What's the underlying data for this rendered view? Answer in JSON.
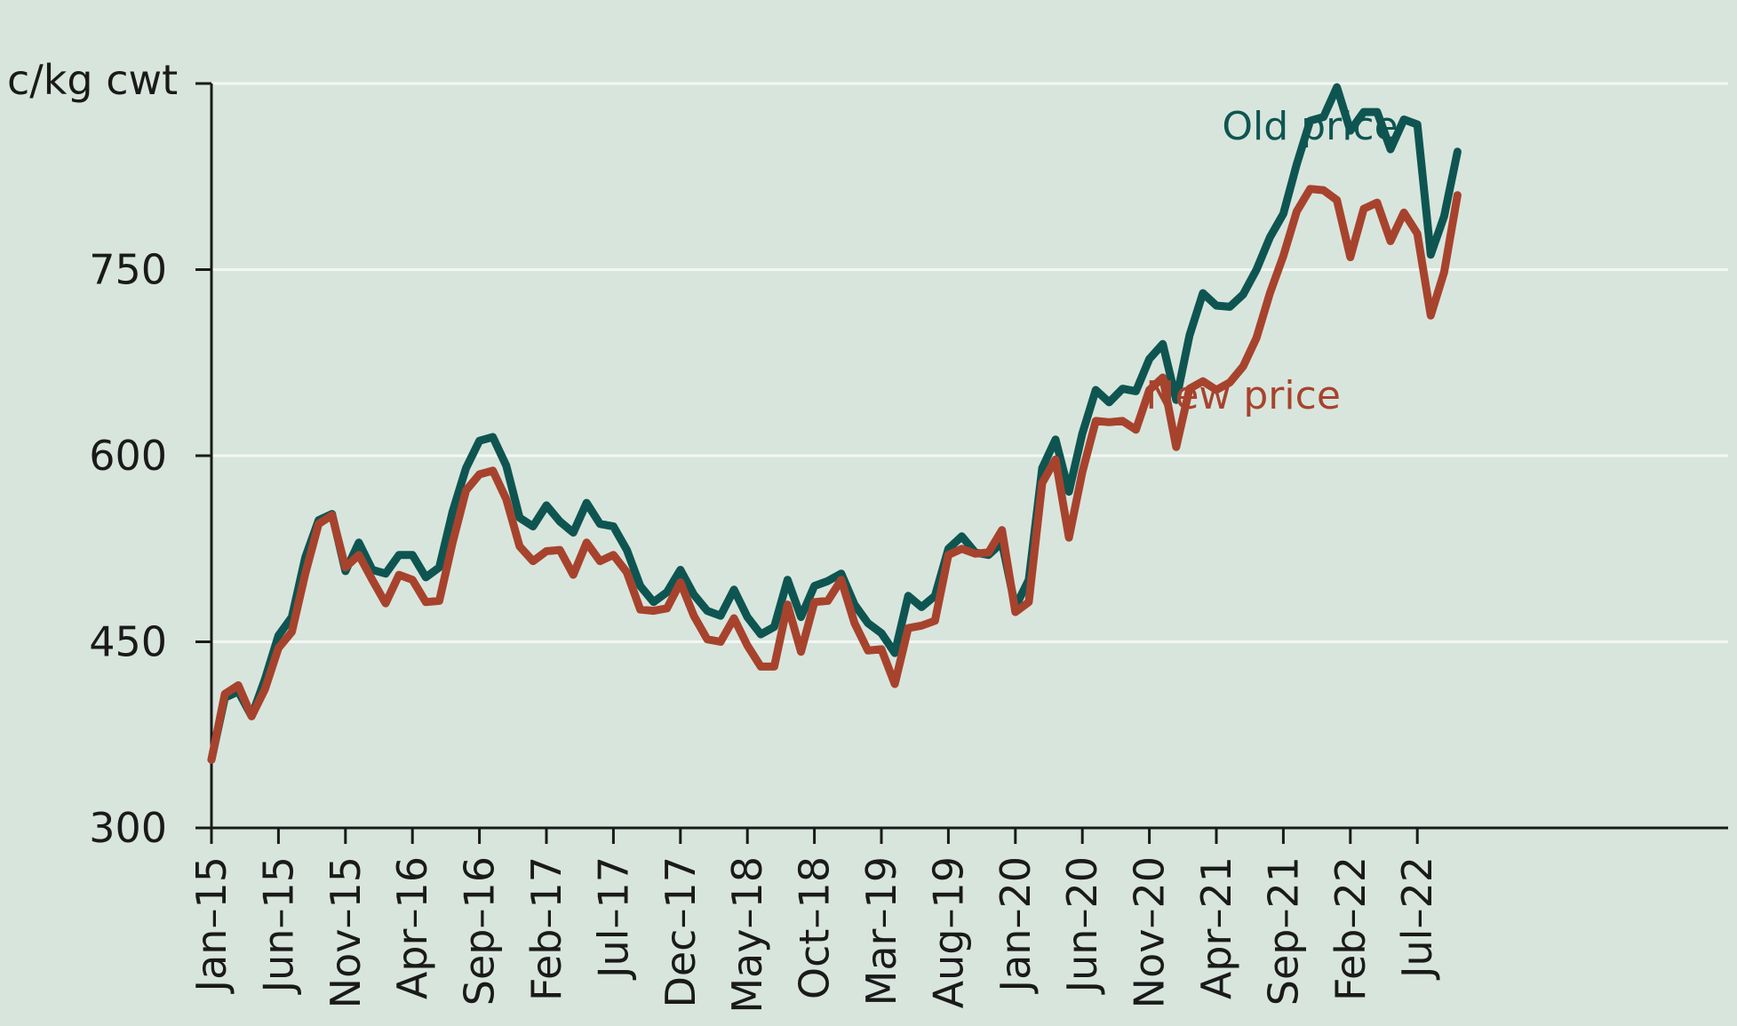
{
  "chart_data": {
    "type": "line",
    "title": "",
    "xlabel": "",
    "ylabel": "c/kg cwt",
    "ylim": [
      300,
      900
    ],
    "yticks": [
      300,
      450,
      600,
      750
    ],
    "grid": true,
    "x": [
      "Jan-15",
      "Feb-15",
      "Mar-15",
      "Apr-15",
      "May-15",
      "Jun-15",
      "Jul-15",
      "Aug-15",
      "Sep-15",
      "Oct-15",
      "Nov-15",
      "Dec-15",
      "Jan-16",
      "Feb-16",
      "Mar-16",
      "Apr-16",
      "May-16",
      "Jun-16",
      "Jul-16",
      "Aug-16",
      "Sep-16",
      "Oct-16",
      "Nov-16",
      "Dec-16",
      "Jan-17",
      "Feb-17",
      "Mar-17",
      "Apr-17",
      "May-17",
      "Jun-17",
      "Jul-17",
      "Aug-17",
      "Sep-17",
      "Oct-17",
      "Nov-17",
      "Dec-17",
      "Jan-18",
      "Feb-18",
      "Mar-18",
      "Apr-18",
      "May-18",
      "Jun-18",
      "Jul-18",
      "Aug-18",
      "Sep-18",
      "Oct-18",
      "Nov-18",
      "Dec-18",
      "Jan-19",
      "Feb-19",
      "Mar-19",
      "Apr-19",
      "May-19",
      "Jun-19",
      "Jul-19",
      "Aug-19",
      "Sep-19",
      "Oct-19",
      "Nov-19",
      "Dec-19",
      "Jan-20",
      "Feb-20",
      "Mar-20",
      "Apr-20",
      "May-20",
      "Jun-20",
      "Jul-20",
      "Aug-20",
      "Sep-20",
      "Oct-20",
      "Nov-20",
      "Dec-20",
      "Jan-21",
      "Feb-21",
      "Mar-21",
      "Apr-21",
      "May-21",
      "Jun-21",
      "Jul-21",
      "Aug-21",
      "Sep-21",
      "Oct-21",
      "Nov-21",
      "Dec-21",
      "Jan-22",
      "Feb-22",
      "Mar-22",
      "Apr-22",
      "May-22",
      "Jun-22",
      "Jul-22",
      "Aug-22",
      "Sep-22",
      "Oct-22"
    ],
    "xtick_labels": [
      "Jan–15",
      "Jun–15",
      "Nov–15",
      "Apr–16",
      "Sep–16",
      "Feb–17",
      "Jul–17",
      "Dec–17",
      "May–18",
      "Oct–18",
      "Mar–19",
      "Aug–19",
      "Jan–20",
      "Jun–20",
      "Nov–20",
      "Apr–21",
      "Sep–21",
      "Feb–22",
      "Jul–22"
    ],
    "xtick_every": 5,
    "series": [
      {
        "name": "Old price",
        "color": "#0e5551",
        "values": [
          355,
          405,
          410,
          390,
          420,
          455,
          470,
          518,
          548,
          553,
          507,
          530,
          508,
          505,
          520,
          520,
          502,
          510,
          555,
          590,
          612,
          615,
          592,
          550,
          543,
          560,
          547,
          538,
          562,
          545,
          543,
          524,
          495,
          482,
          490,
          508,
          488,
          475,
          471,
          492,
          470,
          456,
          462,
          500,
          470,
          495,
          499,
          505,
          480,
          465,
          457,
          441,
          487,
          478,
          487,
          525,
          535,
          522,
          520,
          530,
          478,
          500,
          590,
          613,
          571,
          618,
          653,
          643,
          654,
          652,
          678,
          690,
          645,
          697,
          731,
          721,
          720,
          730,
          750,
          776,
          795,
          835,
          870,
          873,
          897,
          862,
          877,
          877,
          847,
          871,
          867,
          762,
          793,
          845
        ]
      },
      {
        "name": "New price",
        "color": "#a7432d",
        "values": [
          355,
          408,
          415,
          390,
          412,
          445,
          458,
          505,
          545,
          552,
          510,
          520,
          500,
          481,
          504,
          500,
          482,
          483,
          530,
          572,
          585,
          588,
          565,
          527,
          515,
          523,
          524,
          504,
          530,
          515,
          520,
          506,
          476,
          475,
          477,
          498,
          471,
          452,
          450,
          469,
          447,
          430,
          430,
          480,
          442,
          482,
          483,
          500,
          465,
          443,
          444,
          416,
          461,
          463,
          467,
          520,
          525,
          521,
          522,
          540,
          474,
          482,
          578,
          597,
          534,
          587,
          628,
          627,
          628,
          621,
          653,
          663,
          607,
          654,
          660,
          653,
          659,
          672,
          695,
          731,
          761,
          797,
          815,
          814,
          806,
          760,
          799,
          804,
          773,
          796,
          779,
          713,
          748,
          810
        ]
      }
    ],
    "annotations": [
      {
        "text": "Old price",
        "series": "Old price",
        "anchor_x": "Nov-21",
        "anchor_y": 855
      },
      {
        "text": "New price",
        "series": "New price",
        "anchor_x": "Jun-21",
        "anchor_y": 638
      }
    ]
  }
}
